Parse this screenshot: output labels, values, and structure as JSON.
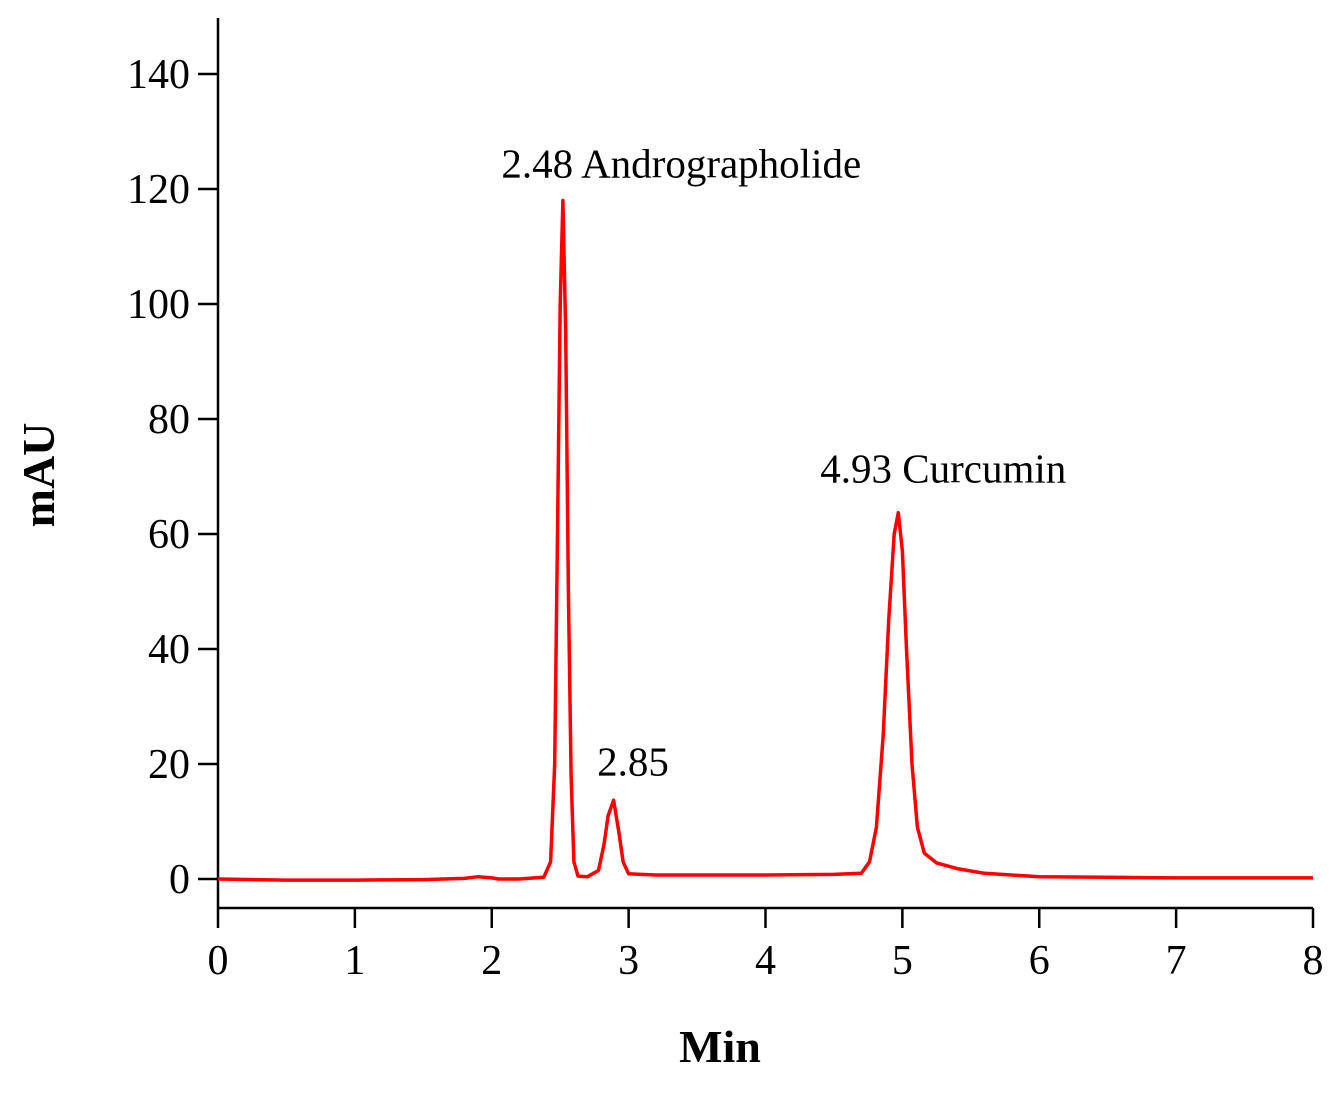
{
  "chart_data": {
    "type": "line",
    "title": "",
    "xlabel": "Min",
    "ylabel": "mAU",
    "xlim": [
      0,
      8
    ],
    "ylim": [
      0,
      140
    ],
    "xticks": [
      0,
      1,
      2,
      3,
      4,
      5,
      6,
      7,
      8
    ],
    "yticks": [
      0,
      20,
      40,
      60,
      80,
      100,
      120,
      140
    ],
    "grid": false,
    "legend": "none",
    "series": [
      {
        "color": "#ff0000",
        "x": [
          0,
          0.5,
          1.0,
          1.5,
          1.8,
          1.9,
          2.0,
          2.05,
          2.2,
          2.38,
          2.43,
          2.46,
          2.48,
          2.5,
          2.52,
          2.54,
          2.56,
          2.58,
          2.6,
          2.63,
          2.7,
          2.78,
          2.82,
          2.85,
          2.89,
          2.93,
          2.96,
          3.0,
          3.2,
          3.5,
          4.0,
          4.5,
          4.7,
          4.76,
          4.81,
          4.86,
          4.9,
          4.94,
          4.97,
          5.0,
          5.03,
          5.07,
          5.11,
          5.16,
          5.25,
          5.4,
          5.6,
          6.0,
          6.5,
          7.0,
          8.0
        ],
        "y": [
          0,
          -0.2,
          -0.2,
          -0.1,
          0.1,
          0.4,
          0.2,
          0,
          0,
          0.3,
          3,
          20,
          60,
          100,
          118,
          95,
          50,
          18,
          3,
          0.5,
          0.4,
          1.5,
          6,
          11,
          13.7,
          8,
          3,
          0.9,
          0.7,
          0.7,
          0.7,
          0.8,
          1,
          3,
          9,
          25,
          45,
          60,
          63.7,
          57,
          40,
          20,
          9,
          4.5,
          2.8,
          1.8,
          1,
          0.4,
          0.3,
          0.2,
          0.2
        ]
      }
    ],
    "annotations": [
      {
        "text": "2.48 Andrographolide",
        "x": 2.07,
        "y": 122
      },
      {
        "text": "2.85",
        "x": 2.77,
        "y": 18
      },
      {
        "text": "4.93 Curcumin",
        "x": 4.4,
        "y": 69
      }
    ]
  }
}
